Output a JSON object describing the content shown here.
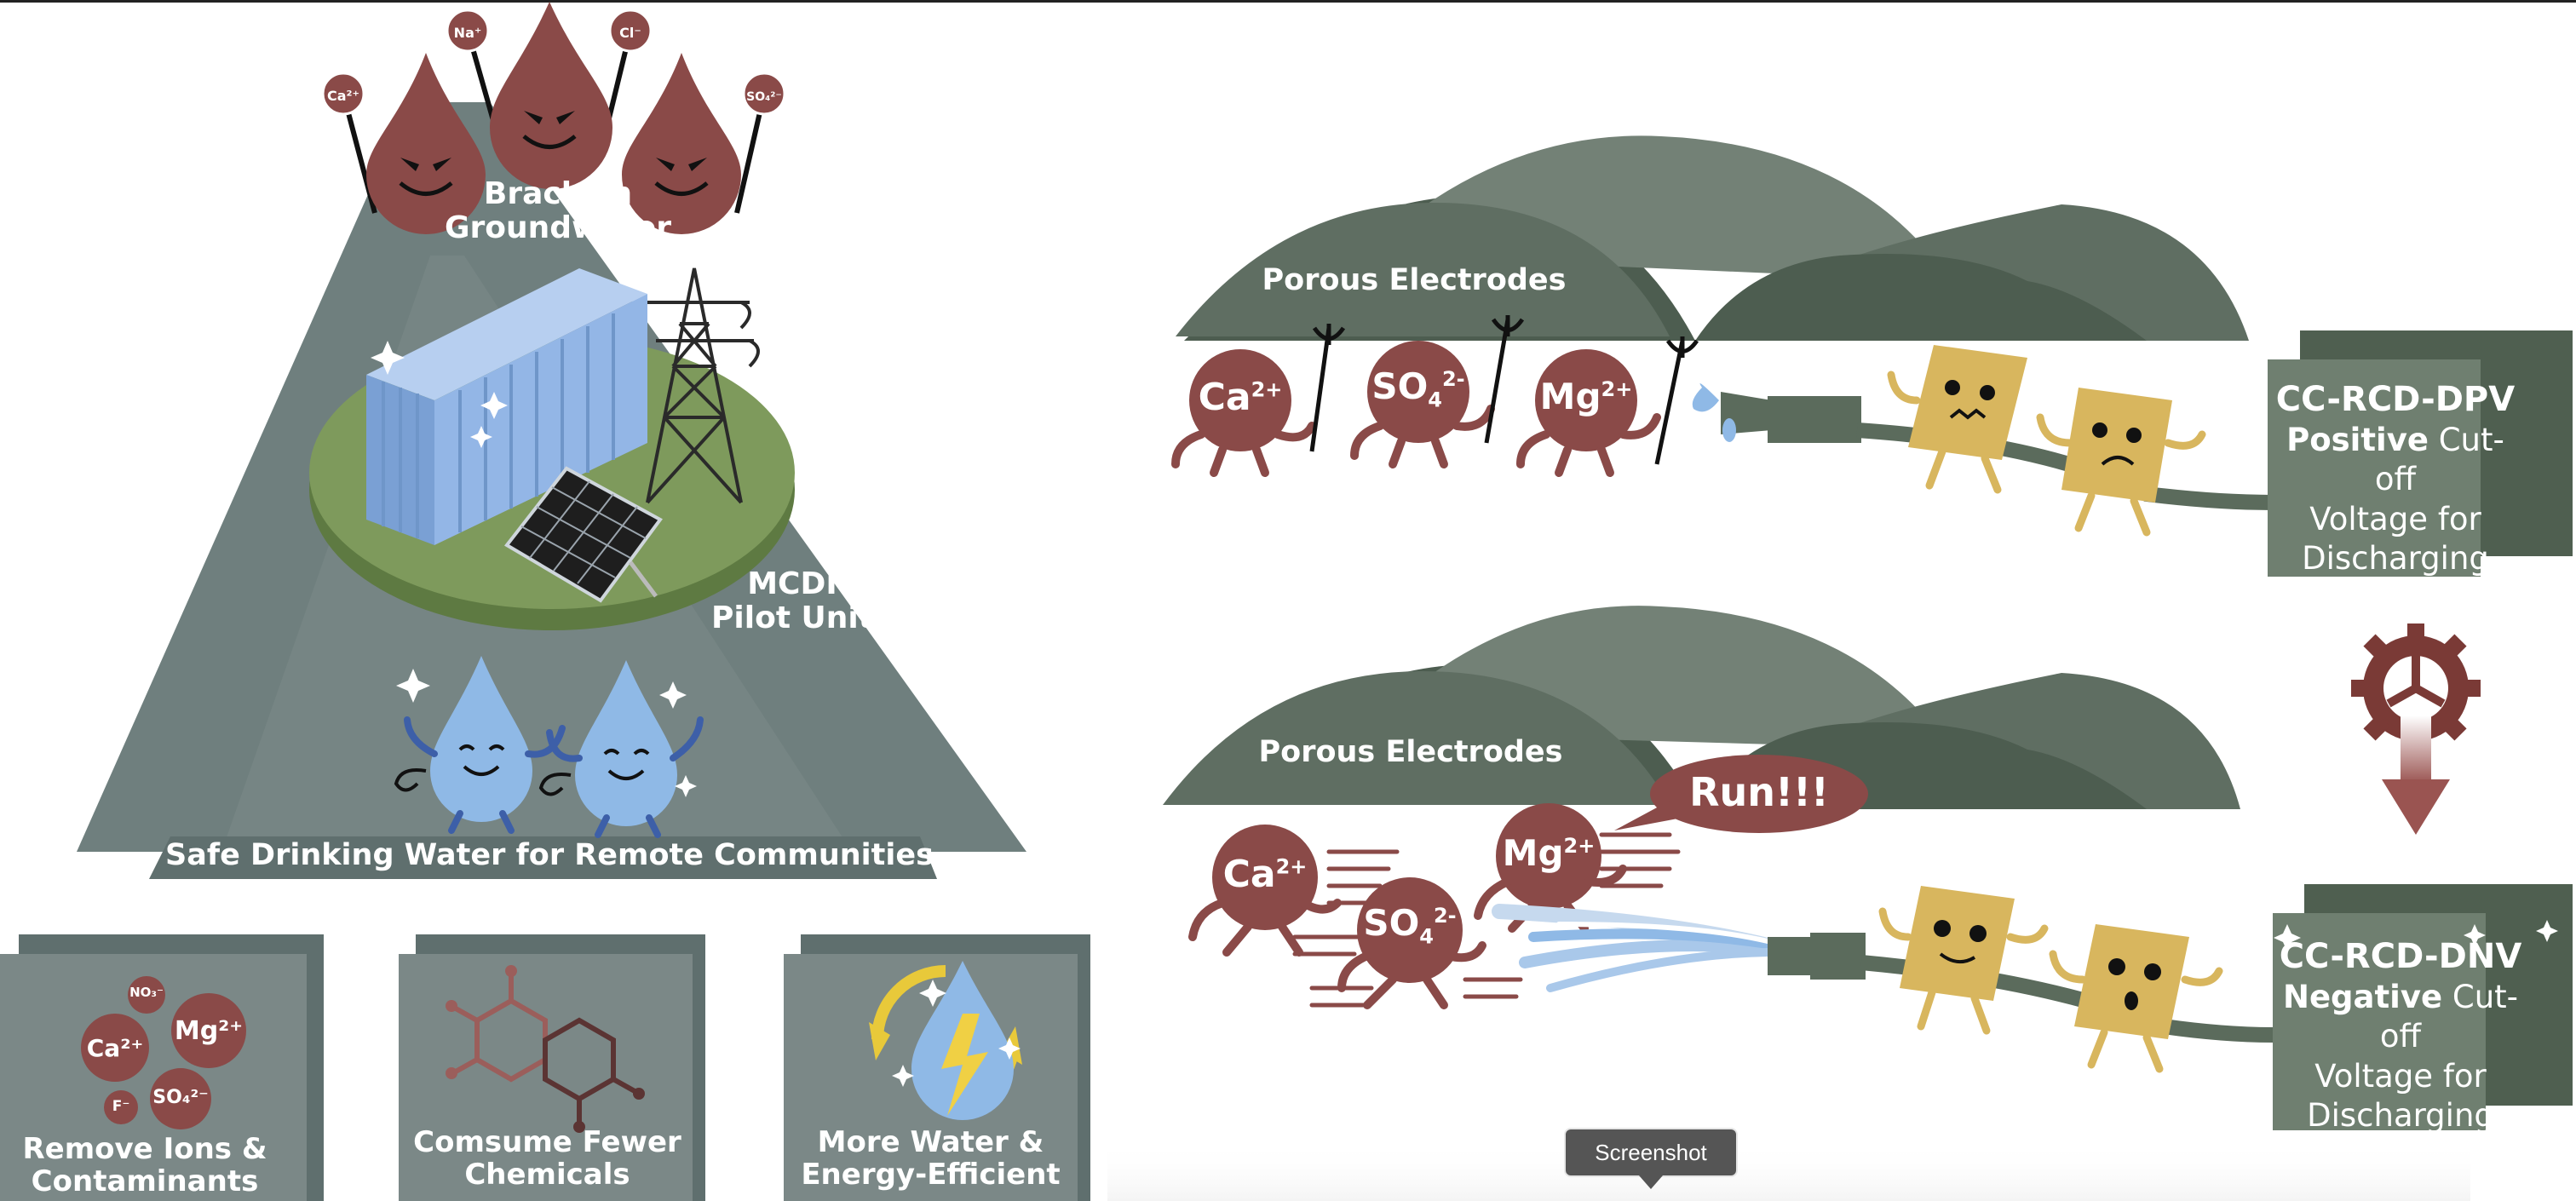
{
  "colors": {
    "slate": "#6f7f7e",
    "slate_dark": "#5b6b6a",
    "hill_light": "#738176",
    "hill_dark": "#4a5a4d",
    "ion_red": "#8a4a48",
    "water_blue": "#8fb9e6",
    "platform_green": "#7e9a5c",
    "container_blue": "#93b6e6",
    "card_yellow": "#d8b65e",
    "lightning_yellow": "#f0d044",
    "arrow_red": "#9a5451"
  },
  "left": {
    "title_line1": "Brackish",
    "title_line2": "Groundwater",
    "unit_line1": "MCDI",
    "unit_line2": "Pilot Unit",
    "bottom_label": "Safe Drinking Water for Remote Communities",
    "drop_signs": [
      "Ca²⁺",
      "Na⁺",
      "Cl⁻",
      "SO₄²⁻"
    ]
  },
  "benefits": [
    {
      "line1": "Remove Ions &",
      "line2": "Contaminants",
      "icon": "ions-icon",
      "ions": [
        "NO₃⁻",
        "Ca²⁺",
        "Mg²⁺",
        "F⁻",
        "SO₄²⁻"
      ]
    },
    {
      "line1": "Comsume Fewer",
      "line2": "Chemicals",
      "icon": "molecule-icon"
    },
    {
      "line1": "More Water &",
      "line2": "Energy-Efficient",
      "icon": "water-energy-icon"
    }
  ],
  "top_panel": {
    "electrodes_label": "Porous Electrodes",
    "ions": [
      {
        "base": "Ca",
        "sub": "",
        "sup": "2+"
      },
      {
        "base": "SO",
        "sub": "4",
        "sup": "2-"
      },
      {
        "base": "Mg",
        "sub": "",
        "sup": "2+"
      }
    ],
    "mode_title": "CC-RCD-DPV",
    "mode_bold": "Positive",
    "mode_rest1": " Cut-off",
    "mode_line2": "Voltage for",
    "mode_line3": "Discharging"
  },
  "bottom_panel": {
    "electrodes_label": "Porous Electrodes",
    "speech": "Run!!!",
    "ions": [
      {
        "base": "Ca",
        "sub": "",
        "sup": "2+"
      },
      {
        "base": "SO",
        "sub": "4",
        "sup": "2-"
      },
      {
        "base": "Mg",
        "sub": "",
        "sup": "2+"
      }
    ],
    "mode_title": "CC-RCD-DNV",
    "mode_bold": "Negative",
    "mode_rest1": " Cut-off",
    "mode_line2": "Voltage for",
    "mode_line3": "Discharging"
  },
  "tooltip": "Screenshot"
}
